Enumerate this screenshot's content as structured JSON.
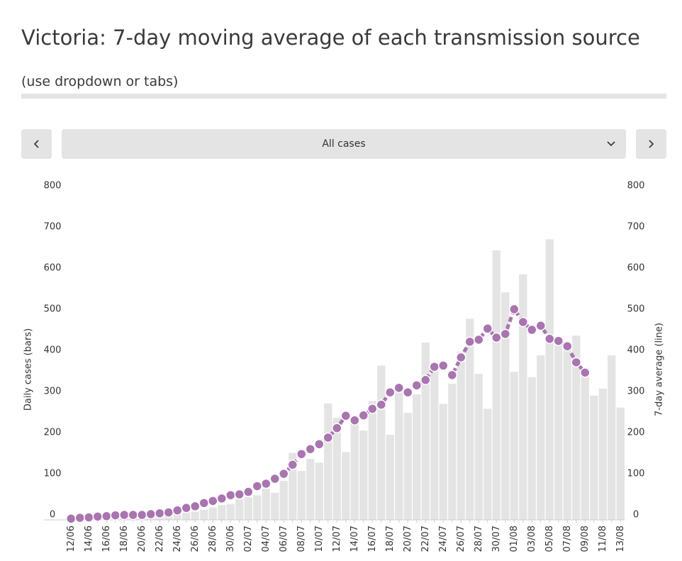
{
  "chart_data": {
    "type": "bar_line",
    "title": "Victoria: 7-day moving average of each transmission source",
    "subtitle": "(use dropdown or tabs)",
    "dropdown": "All cases",
    "y_label": "Daily cases (bars)",
    "y2_label": "7-day average (line)",
    "categories": [
      "12/06",
      null,
      "14/06",
      null,
      "16/06",
      null,
      "18/06",
      null,
      "20/06",
      null,
      "22/06",
      null,
      "24/06",
      null,
      "26/06",
      null,
      "28/06",
      null,
      "30/06",
      null,
      "02/07",
      null,
      "04/07",
      null,
      "06/07",
      null,
      "08/07",
      null,
      "10/07",
      null,
      "12/07",
      null,
      "14/07",
      null,
      "16/07",
      null,
      "18/07",
      null,
      "20/07",
      null,
      "22/07",
      null,
      "24/07",
      null,
      "26/07",
      null,
      "28/07",
      null,
      "30/07",
      null,
      "01/08",
      null,
      "03/08",
      null,
      "05/08",
      null,
      "07/08",
      null,
      "09/08",
      null,
      "11/08",
      null,
      "13/08"
    ],
    "series": [
      {
        "type": "bar",
        "color": "#e4e4e4",
        "values": [
          1,
          1,
          2,
          2,
          3,
          4,
          5,
          5,
          6,
          8,
          10,
          12,
          15,
          18,
          20,
          25,
          30,
          36,
          38,
          50,
          55,
          60,
          76,
          66,
          95,
          163,
          119,
          148,
          139,
          283,
          248,
          165,
          248,
          217,
          289,
          375,
          207,
          331,
          260,
          305,
          431,
          370,
          282,
          331,
          409,
          489,
          355,
          270,
          655,
          553,
          360,
          597,
          347,
          400,
          682,
          425,
          415,
          448,
          370,
          302,
          319,
          400,
          273
        ]
      },
      {
        "type": "line",
        "axis": "y2",
        "color": "#a974b0",
        "values": [
          3,
          5,
          6,
          8,
          9,
          11,
          12,
          12,
          12,
          14,
          16,
          18,
          23,
          29,
          33,
          41,
          46,
          52,
          60,
          62,
          68,
          82,
          88,
          100,
          112,
          134,
          160,
          172,
          184,
          200,
          223,
          253,
          242,
          254,
          270,
          280,
          310,
          321,
          310,
          327,
          340,
          372,
          375,
          352,
          395,
          433,
          438,
          465,
          443,
          452,
          512,
          481,
          462,
          472,
          440,
          435,
          422,
          383,
          358,
          null,
          null,
          null,
          null
        ]
      }
    ],
    "ylim": [
      0,
      800
    ],
    "yticks": [
      0,
      100,
      200,
      300,
      400,
      500,
      600,
      700,
      800
    ],
    "y2lim": [
      0,
      800
    ],
    "y2ticks": [
      0,
      100,
      200,
      300,
      400,
      500,
      600,
      700,
      800
    ]
  }
}
